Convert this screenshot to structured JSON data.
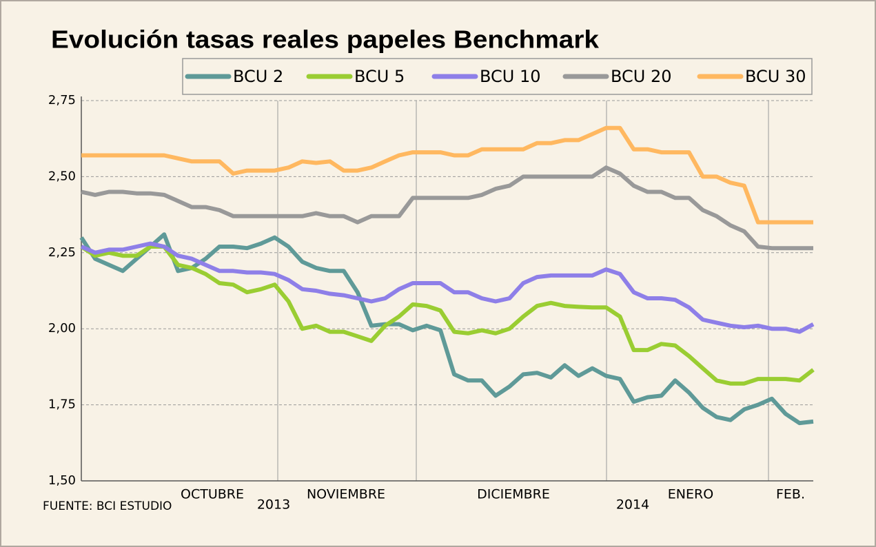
{
  "chart_data": {
    "type": "line",
    "title": "Evolución tasas reales papeles Benchmark",
    "source": "FUENTE: BCI ESTUDIO",
    "period_labels": [
      "OCTUBRE",
      "2013",
      "NOVIEMBRE",
      "DICIEMBRE",
      "2014",
      "ENERO",
      "FEB."
    ],
    "categories": [
      null,
      null,
      null,
      null,
      null,
      null,
      null,
      null,
      null,
      null,
      null,
      null,
      null,
      null,
      null,
      null,
      null,
      null,
      null,
      null,
      null,
      null,
      null,
      null,
      null,
      null,
      null,
      null,
      null,
      null,
      null,
      null,
      null,
      null,
      null,
      null,
      null,
      null,
      null,
      null,
      null,
      null,
      null,
      null,
      null,
      null,
      null,
      null,
      null,
      null,
      null,
      null,
      null,
      null
    ],
    "ylim": [
      1.5,
      2.75
    ],
    "yticks": [
      {
        "value": 1.5,
        "label": "1,50"
      },
      {
        "value": 1.75,
        "label": "1,75"
      },
      {
        "value": 2.0,
        "label": "2,00"
      },
      {
        "value": 2.25,
        "label": "2,25"
      },
      {
        "value": 2.5,
        "label": "2,50"
      },
      {
        "value": 2.75,
        "label": "2,75"
      }
    ],
    "grid": true,
    "series": [
      {
        "name": "BCU 2",
        "color": "#5f9a98",
        "values": [
          2.3,
          2.23,
          2.21,
          2.19,
          2.23,
          2.27,
          2.31,
          2.19,
          2.2,
          2.23,
          2.27,
          2.27,
          2.265,
          2.28,
          2.3,
          2.27,
          2.22,
          2.2,
          2.19,
          2.19,
          2.12,
          2.01,
          2.015,
          2.015,
          1.995,
          2.01,
          1.995,
          1.85,
          1.83,
          1.83,
          1.78,
          1.81,
          1.85,
          1.855,
          1.84,
          1.88,
          1.845,
          1.87,
          1.845,
          1.835,
          1.76,
          1.775,
          1.78,
          1.83,
          1.79,
          1.74,
          1.71,
          1.7,
          1.735,
          1.75,
          1.77,
          1.72,
          1.69,
          1.695
        ]
      },
      {
        "name": "BCU 5",
        "color": "#9acd32",
        "values": [
          2.27,
          2.24,
          2.25,
          2.24,
          2.24,
          2.27,
          2.27,
          2.21,
          2.2,
          2.18,
          2.15,
          2.145,
          2.12,
          2.13,
          2.145,
          2.09,
          2.0,
          2.01,
          1.99,
          1.99,
          1.975,
          1.96,
          2.01,
          2.04,
          2.08,
          2.075,
          2.06,
          1.99,
          1.985,
          1.995,
          1.985,
          2.0,
          2.04,
          2.075,
          2.085,
          2.075,
          2.072,
          2.07,
          2.07,
          2.04,
          1.93,
          1.93,
          1.95,
          1.945,
          1.91,
          1.87,
          1.83,
          1.82,
          1.82,
          1.835,
          1.835,
          1.835,
          1.83,
          1.865
        ]
      },
      {
        "name": "BCU 10",
        "color": "#8e7fe8",
        "values": [
          2.27,
          2.25,
          2.26,
          2.26,
          2.27,
          2.28,
          2.27,
          2.24,
          2.23,
          2.21,
          2.19,
          2.19,
          2.185,
          2.185,
          2.18,
          2.16,
          2.13,
          2.125,
          2.115,
          2.11,
          2.1,
          2.09,
          2.1,
          2.13,
          2.15,
          2.15,
          2.15,
          2.12,
          2.12,
          2.1,
          2.09,
          2.1,
          2.15,
          2.17,
          2.175,
          2.175,
          2.175,
          2.175,
          2.195,
          2.18,
          2.12,
          2.1,
          2.1,
          2.095,
          2.07,
          2.03,
          2.02,
          2.01,
          2.005,
          2.01,
          2.0,
          2.0,
          1.99,
          2.015
        ]
      },
      {
        "name": "BCU 20",
        "color": "#999999",
        "values": [
          2.45,
          2.44,
          2.45,
          2.45,
          2.445,
          2.445,
          2.44,
          2.42,
          2.4,
          2.4,
          2.39,
          2.37,
          2.37,
          2.37,
          2.37,
          2.37,
          2.37,
          2.38,
          2.37,
          2.37,
          2.35,
          2.37,
          2.37,
          2.37,
          2.43,
          2.43,
          2.43,
          2.43,
          2.43,
          2.44,
          2.46,
          2.47,
          2.5,
          2.5,
          2.5,
          2.5,
          2.5,
          2.5,
          2.53,
          2.51,
          2.47,
          2.45,
          2.45,
          2.43,
          2.43,
          2.39,
          2.37,
          2.34,
          2.32,
          2.27,
          2.265,
          2.265,
          2.265,
          2.265
        ]
      },
      {
        "name": "BCU 30",
        "color": "#ffb860",
        "values": [
          2.57,
          2.57,
          2.57,
          2.57,
          2.57,
          2.57,
          2.57,
          2.56,
          2.55,
          2.55,
          2.55,
          2.51,
          2.52,
          2.52,
          2.52,
          2.53,
          2.55,
          2.545,
          2.55,
          2.52,
          2.52,
          2.53,
          2.55,
          2.57,
          2.58,
          2.58,
          2.58,
          2.57,
          2.57,
          2.59,
          2.59,
          2.59,
          2.59,
          2.61,
          2.61,
          2.62,
          2.62,
          2.64,
          2.66,
          2.66,
          2.59,
          2.59,
          2.58,
          2.58,
          2.58,
          2.5,
          2.5,
          2.48,
          2.47,
          2.35,
          2.35,
          2.35,
          2.35,
          2.35
        ]
      }
    ]
  }
}
